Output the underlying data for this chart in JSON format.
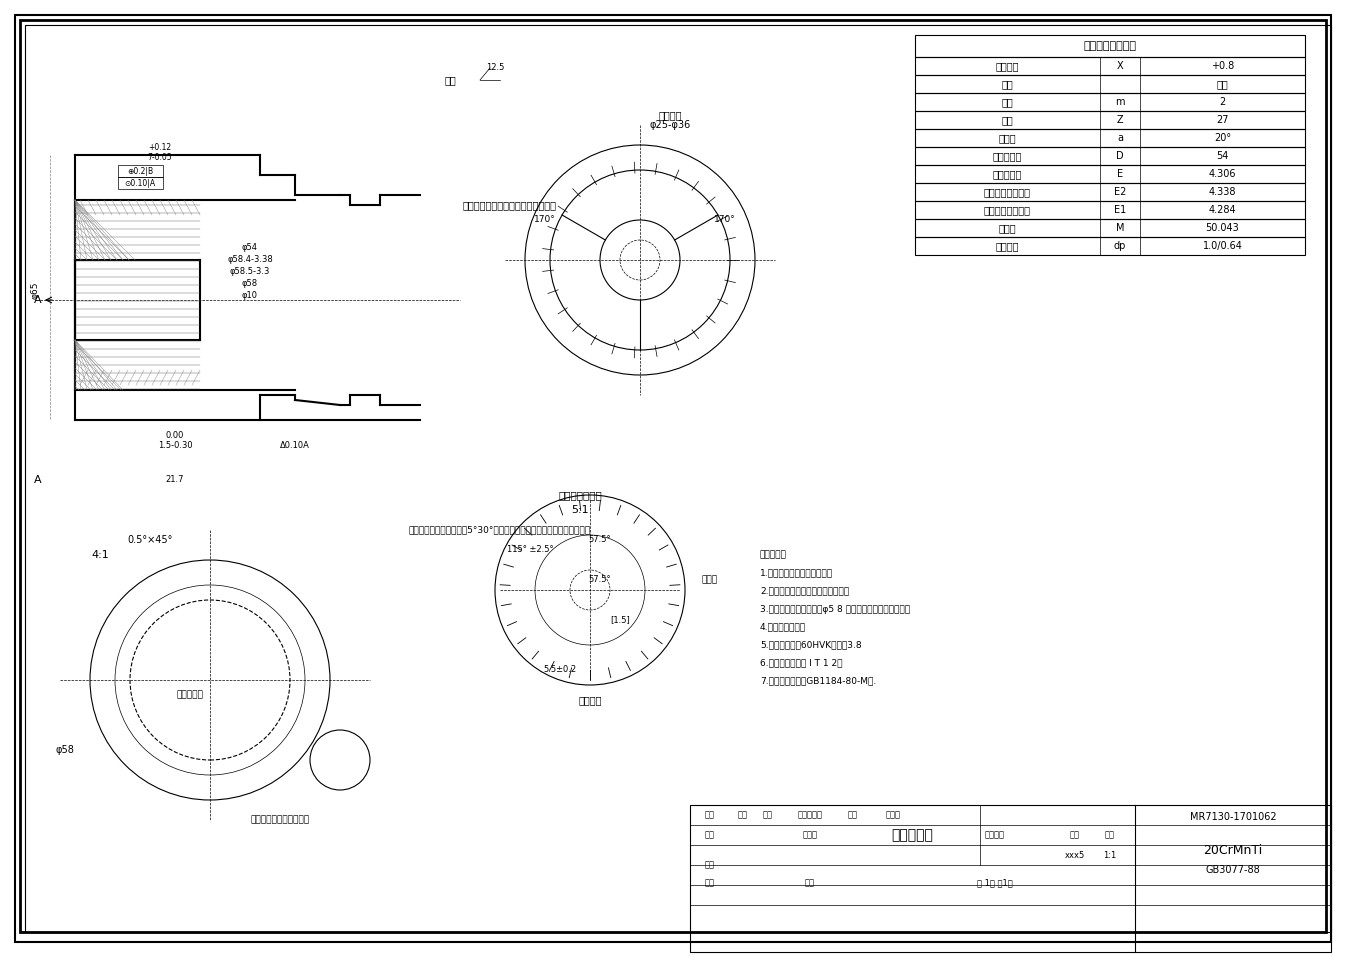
{
  "title": "同步器齿套",
  "drawing_number": "MR7130-1701062",
  "material": "20CrMnTi",
  "standard": "GB3077-88",
  "scale": "1:1",
  "background": "#ffffff",
  "border_color": "#000000",
  "line_width": 0.8,
  "spline_table_title": "渐开线内花键参数",
  "spline_params": [
    [
      "变位系数",
      "X",
      "+0.8"
    ],
    [
      "齿形",
      "",
      "粗齿"
    ],
    [
      "模数",
      "m",
      "2"
    ],
    [
      "齿数",
      "Z",
      "27"
    ],
    [
      "压力角",
      "a",
      "20°"
    ],
    [
      "分度圆直径",
      "D",
      "54"
    ],
    [
      "基本齿槽宽",
      "E",
      "4.306"
    ],
    [
      "实际齿槽宽最大值",
      "E2",
      "4.338"
    ],
    [
      "实际齿槽宽最小值",
      "E1",
      "4.284"
    ],
    [
      "跨棒距",
      "M",
      "50.043"
    ],
    [
      "量棒直径",
      "dp",
      "1.0/0.64"
    ]
  ],
  "notes": [
    "技术要求：",
    "1.渐开线花键的制齿面一平面",
    "2.花键的大径端棱不得有毛刺和凸起",
    "3.热处后的花键大径尺寸φ5 8 的公差按下表所示分为三组",
    "4.毛坯需退磁处理",
    "5.渗碳淬火硬度60HVK上表度3.8",
    "6.未注尺寸公差按 I T 1 2级",
    "7.未注形位公差按GB1184-80-M级."
  ],
  "title_block": {
    "part_name": "同步器齿套",
    "drawing_no": "MR7130-1701062",
    "material": "20CrMnTi",
    "standard_ref": "GB3077-88",
    "scale": "1:1",
    "sheets": "共 1张 第1张"
  }
}
